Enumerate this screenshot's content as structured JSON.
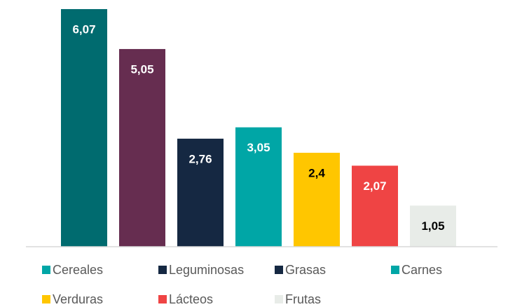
{
  "chart_data": {
    "type": "bar",
    "categories": [
      "Cereales",
      "Leguminosas",
      "Grasas",
      "Carnes",
      "Verduras",
      "Lácteos",
      "Frutas"
    ],
    "values": [
      6.07,
      5.05,
      2.76,
      3.05,
      2.4,
      2.07,
      1.05
    ],
    "value_labels": [
      "6,07",
      "5,05",
      "2,76",
      "3,05",
      "2,4",
      "2,07",
      "1,05"
    ],
    "colors": [
      "#006b6f",
      "#662d50",
      "#152842",
      "#00a6a6",
      "#ffc600",
      "#ef4444",
      "#e8ece8"
    ],
    "legend_colors": [
      "#00a6a6",
      "#152842",
      "#152842",
      "#00a6a6",
      "#ffc600",
      "#ef4444",
      "#e8ece8"
    ],
    "ylim": [
      0,
      6.1
    ],
    "legend": "bottom"
  }
}
